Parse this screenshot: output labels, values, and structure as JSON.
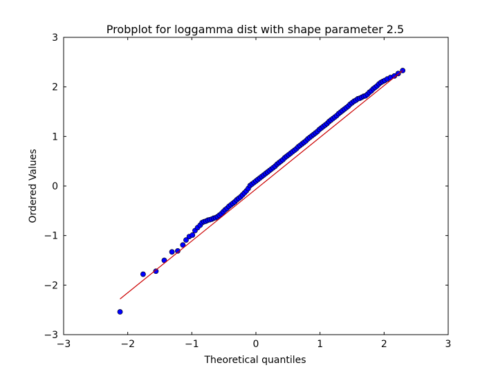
{
  "chart_data": {
    "type": "scatter",
    "title": "Probplot for loggamma dist with shape parameter 2.5",
    "xlabel": "Theoretical quantiles",
    "ylabel": "Ordered Values",
    "xlim": [
      -3,
      3
    ],
    "ylim": [
      -3,
      3
    ],
    "xticks": [
      -3,
      -2,
      -1,
      0,
      1,
      2,
      3
    ],
    "yticks": [
      -3,
      -2,
      -1,
      0,
      1,
      2,
      3
    ],
    "xtick_labels": [
      "−3",
      "−2",
      "−1",
      "0",
      "1",
      "2",
      "3"
    ],
    "ytick_labels": [
      "−3",
      "−2",
      "−1",
      "0",
      "1",
      "2",
      "3"
    ],
    "grid": false,
    "legend": "none",
    "series": [
      {
        "kind": "points",
        "color": "#0000ff",
        "edge_color": "#000000",
        "x": [
          -2.12,
          -1.76,
          -1.56,
          -1.43,
          -1.31,
          -1.22,
          -1.14,
          -1.09,
          -1.04,
          -0.99,
          -0.95,
          -0.91,
          -0.87,
          -0.84,
          -0.81,
          -0.78,
          -0.75,
          -0.72,
          -0.69,
          -0.66,
          -0.63,
          -0.6,
          -0.57,
          -0.54,
          -0.51,
          -0.48,
          -0.45,
          -0.42,
          -0.39,
          -0.36,
          -0.33,
          -0.3,
          -0.27,
          -0.24,
          -0.21,
          -0.18,
          -0.15,
          -0.12,
          -0.09,
          -0.06,
          -0.03,
          0.0,
          0.03,
          0.06,
          0.09,
          0.12,
          0.15,
          0.18,
          0.21,
          0.24,
          0.27,
          0.3,
          0.33,
          0.36,
          0.39,
          0.42,
          0.45,
          0.48,
          0.51,
          0.54,
          0.57,
          0.6,
          0.63,
          0.66,
          0.69,
          0.72,
          0.75,
          0.78,
          0.81,
          0.84,
          0.87,
          0.9,
          0.93,
          0.96,
          0.99,
          1.02,
          1.05,
          1.08,
          1.11,
          1.14,
          1.17,
          1.2,
          1.23,
          1.26,
          1.29,
          1.32,
          1.35,
          1.38,
          1.41,
          1.44,
          1.47,
          1.5,
          1.53,
          1.56,
          1.59,
          1.62,
          1.65,
          1.68,
          1.71,
          1.74,
          1.77,
          1.8,
          1.83,
          1.86,
          1.89,
          1.92,
          1.95,
          1.98,
          2.01,
          2.05,
          2.1,
          2.16,
          2.22,
          2.29
        ],
        "y": [
          -2.54,
          -1.78,
          -1.72,
          -1.5,
          -1.33,
          -1.31,
          -1.19,
          -1.09,
          -1.02,
          -0.99,
          -0.9,
          -0.84,
          -0.79,
          -0.74,
          -0.72,
          -0.71,
          -0.69,
          -0.68,
          -0.67,
          -0.65,
          -0.64,
          -0.62,
          -0.59,
          -0.56,
          -0.52,
          -0.48,
          -0.45,
          -0.41,
          -0.38,
          -0.35,
          -0.32,
          -0.28,
          -0.25,
          -0.22,
          -0.18,
          -0.14,
          -0.1,
          -0.05,
          0.01,
          0.04,
          0.07,
          0.1,
          0.13,
          0.16,
          0.19,
          0.22,
          0.25,
          0.28,
          0.31,
          0.34,
          0.37,
          0.4,
          0.44,
          0.47,
          0.5,
          0.53,
          0.57,
          0.6,
          0.63,
          0.66,
          0.69,
          0.72,
          0.75,
          0.79,
          0.82,
          0.85,
          0.88,
          0.91,
          0.95,
          0.98,
          1.01,
          1.04,
          1.07,
          1.1,
          1.14,
          1.17,
          1.2,
          1.23,
          1.26,
          1.3,
          1.33,
          1.36,
          1.39,
          1.42,
          1.46,
          1.49,
          1.52,
          1.55,
          1.58,
          1.61,
          1.65,
          1.68,
          1.71,
          1.73,
          1.76,
          1.77,
          1.79,
          1.81,
          1.82,
          1.85,
          1.89,
          1.92,
          1.96,
          1.99,
          2.02,
          2.06,
          2.09,
          2.11,
          2.13,
          2.16,
          2.19,
          2.22,
          2.27,
          2.33
        ]
      },
      {
        "kind": "fit-line",
        "color": "#cc0000",
        "x": [
          -2.12,
          2.29
        ],
        "y": [
          -2.28,
          2.33
        ]
      }
    ]
  }
}
